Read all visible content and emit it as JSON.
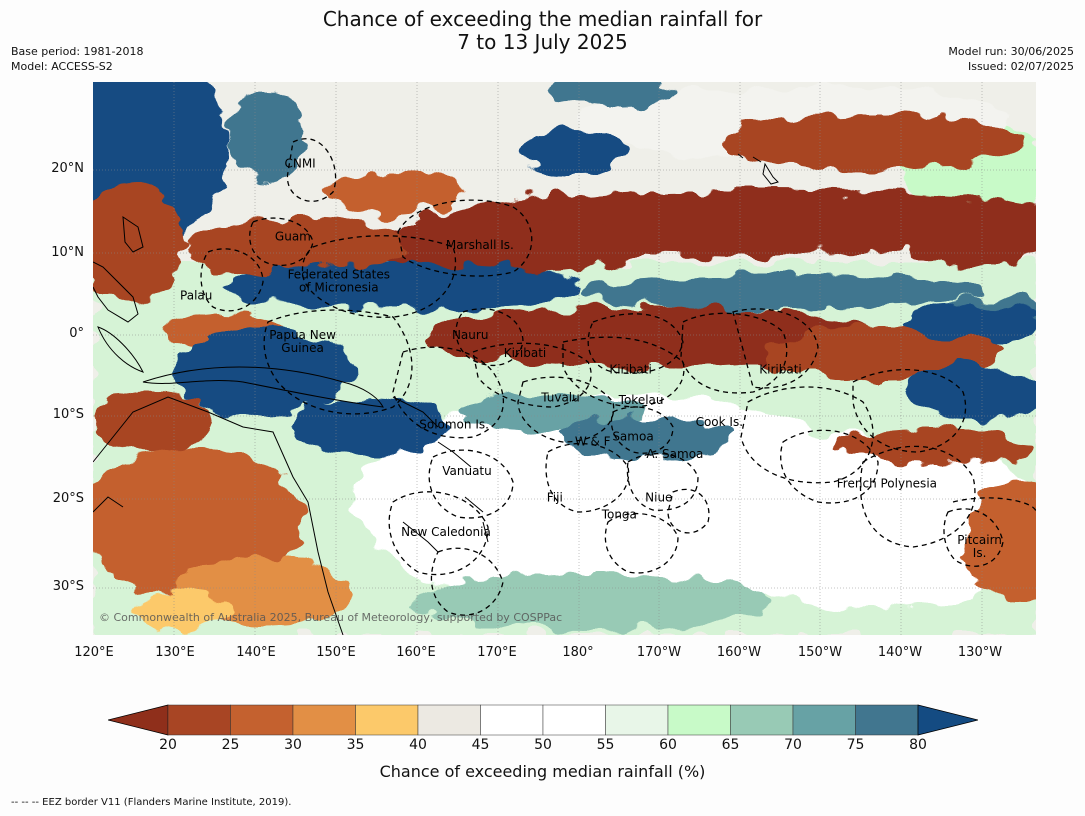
{
  "title": {
    "line1": "Chance of exceeding the median rainfall for",
    "line2": "7 to 13 July 2025"
  },
  "meta_left": {
    "base_period": "Base period: 1981-2018",
    "model": "Model: ACCESS-S2"
  },
  "meta_right": {
    "model_run": "Model run: 30/06/2025",
    "issued": "Issued: 02/07/2025"
  },
  "map": {
    "lat_labels": [
      "20°N",
      "10°N",
      "0°",
      "10°S",
      "20°S",
      "30°S"
    ],
    "lon_labels": [
      "120°E",
      "130°E",
      "140°E",
      "150°E",
      "160°E",
      "170°E",
      "180°",
      "170°W",
      "160°W",
      "150°W",
      "140°W",
      "130°W"
    ],
    "regions": [
      {
        "name": "CNMI",
        "lon": 145.7,
        "lat": 20.9
      },
      {
        "name": "Guam",
        "lon": 144.8,
        "lat": 12.0
      },
      {
        "name": "Marshall Is.",
        "lon": 168.0,
        "lat": 11.0
      },
      {
        "name": "Federated States",
        "lon": 150.5,
        "lat": 7.4
      },
      {
        "name": "of Micronesia",
        "lon": 150.5,
        "lat": 5.8
      },
      {
        "name": "Palau",
        "lon": 132.8,
        "lat": 4.8
      },
      {
        "name": "Papua New",
        "lon": 146.0,
        "lat": 0.0
      },
      {
        "name": "Guinea",
        "lon": 146.0,
        "lat": -1.6
      },
      {
        "name": "Nauru",
        "lon": 166.8,
        "lat": 0.0
      },
      {
        "name": "Kiribati",
        "lon": 173.6,
        "lat": -2.2
      },
      {
        "name": "Kiribati",
        "lon": 186.7,
        "lat": -4.2
      },
      {
        "name": "Kiribati",
        "lon": 205.3,
        "lat": -4.2
      },
      {
        "name": "Tuvalu",
        "lon": 178.0,
        "lat": -7.6
      },
      {
        "name": "Tokelau",
        "lon": 188.0,
        "lat": -7.9
      },
      {
        "name": "Cook Is.",
        "lon": 197.7,
        "lat": -10.6
      },
      {
        "name": "Solomon Is.",
        "lon": 164.8,
        "lat": -10.9
      },
      {
        "name": "Samoa",
        "lon": 187.0,
        "lat": -12.4
      },
      {
        "name": "W & F",
        "lon": 182.0,
        "lat": -13.0
      },
      {
        "name": "A. Samoa",
        "lon": 192.2,
        "lat": -14.5
      },
      {
        "name": "Vanuatu",
        "lon": 166.4,
        "lat": -16.6
      },
      {
        "name": "French Polynesia",
        "lon": 218.5,
        "lat": -18.1
      },
      {
        "name": "Fiji",
        "lon": 177.3,
        "lat": -19.8
      },
      {
        "name": "Niue",
        "lon": 190.2,
        "lat": -19.8
      },
      {
        "name": "Tonga",
        "lon": 185.3,
        "lat": -21.9
      },
      {
        "name": "New Caledonia",
        "lon": 163.8,
        "lat": -24.0
      },
      {
        "name": "Pitcairn",
        "lon": 230.0,
        "lat": -25.0
      },
      {
        "name": "Is.",
        "lon": 230.0,
        "lat": -26.6
      }
    ],
    "copyright": "© Commonwealth of Australia 2025, Bureau of Meteorology, supported by COSPPac"
  },
  "colorbar": {
    "ticks": [
      "20",
      "25",
      "30",
      "35",
      "40",
      "45",
      "50",
      "55",
      "60",
      "65",
      "70",
      "75",
      "80"
    ],
    "colors": [
      "#8f2f1b",
      "#a84524",
      "#c4612f",
      "#e28f45",
      "#fcc96a",
      "#ece9e2",
      "#ffffff",
      "#ffffff",
      "#e8f6e8",
      "#c8fac8",
      "#98cab5",
      "#67a2a5",
      "#41768f",
      "#144b82"
    ],
    "label": "Chance of exceeding median rainfall (%)"
  },
  "footer": "--  --  -- EEZ border V11 (Flanders Marine Institute, 2019)."
}
